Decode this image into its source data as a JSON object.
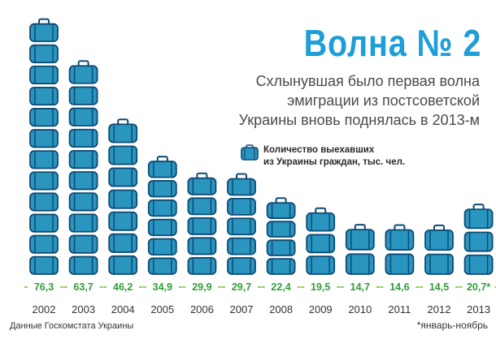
{
  "title": "Волна № 2",
  "subtitle": [
    "Схлынувшая было первая волна",
    "эмиграции из постсоветской",
    "Украины вновь поднялась в 2013-м"
  ],
  "legend_label": [
    "Количество выехавших",
    "из Украины граждан, тыс. чел."
  ],
  "legend_icon": "suitcase-icon",
  "source": "Данные Госкомстата Украины",
  "footnote": "*январь-ноябрь",
  "colors": {
    "title": "#1e9ed6",
    "suitcase_fill": "#2a96c0",
    "suitcase_stroke": "#0c4a73",
    "value_text": "#2f9e3a",
    "value_dash": "#8fcf5a"
  },
  "chart_data": {
    "type": "bar",
    "categories": [
      "2002",
      "2003",
      "2004",
      "2005",
      "2006",
      "2007",
      "2008",
      "2009",
      "2010",
      "2011",
      "2012",
      "2013"
    ],
    "values": [
      76.3,
      63.7,
      46.2,
      34.9,
      29.9,
      29.7,
      22.4,
      19.5,
      14.7,
      14.6,
      14.5,
      20.7
    ],
    "value_labels": [
      "76,3",
      "63,7",
      "46,2",
      "34,9",
      "29,9",
      "29,7",
      "22,4",
      "19,5",
      "14,7",
      "14,6",
      "14,5",
      "20,7*"
    ],
    "title": "Волна № 2",
    "xlabel": "",
    "ylabel": "",
    "ylim": [
      0,
      80
    ],
    "grid": false,
    "legend": "right"
  }
}
